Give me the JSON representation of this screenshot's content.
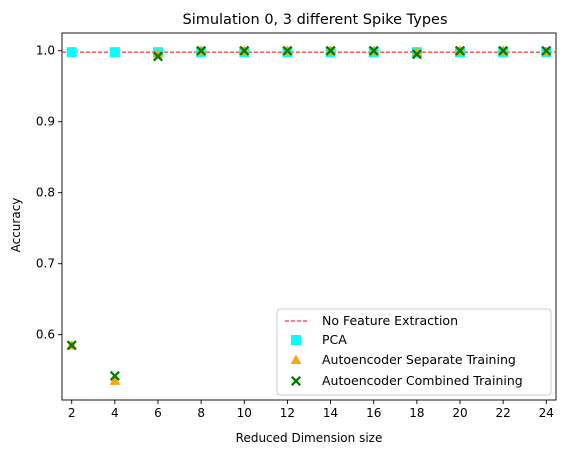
{
  "chart_data": {
    "type": "scatter",
    "title": "Simulation 0, 3 different Spike Types",
    "xlabel": "Reduced Dimension size",
    "ylabel": "Accuracy",
    "x": [
      2,
      4,
      6,
      8,
      10,
      12,
      14,
      16,
      18,
      20,
      22,
      24
    ],
    "xlim": [
      1.55,
      24.45
    ],
    "ylim": [
      0.508,
      1.025
    ],
    "x_ticks": [
      "2",
      "4",
      "6",
      "8",
      "10",
      "12",
      "14",
      "16",
      "18",
      "20",
      "22",
      "24"
    ],
    "y_ticks": [
      {
        "value": 0.6,
        "label": "0.6"
      },
      {
        "value": 0.7,
        "label": "0.7"
      },
      {
        "value": 0.8,
        "label": "0.8"
      },
      {
        "value": 0.9,
        "label": "0.9"
      },
      {
        "value": 1.0,
        "label": "1.0"
      }
    ],
    "grid": false,
    "legend_position": "lower-right",
    "reference_line": {
      "name": "No Feature Extraction",
      "value": 0.998,
      "color": "#ff0000",
      "style": "dashed"
    },
    "series": [
      {
        "name": "PCA",
        "marker": "square",
        "color": "#00ffff",
        "values": [
          0.998,
          0.998,
          0.998,
          0.998,
          0.998,
          0.998,
          0.998,
          0.998,
          0.998,
          0.998,
          0.998,
          0.998
        ]
      },
      {
        "name": "Autoencoder Separate Training",
        "marker": "triangle",
        "color": "#ffa500",
        "values": [
          0.585,
          0.535,
          0.996,
          1.0,
          1.0,
          1.0,
          1.0,
          1.0,
          0.998,
          1.0,
          1.0,
          0.998
        ]
      },
      {
        "name": "Autoencoder Combined Training",
        "marker": "x",
        "color": "#008000",
        "values": [
          0.585,
          0.542,
          0.992,
          1.0,
          1.0,
          1.0,
          1.0,
          1.0,
          0.995,
          1.0,
          1.0,
          1.0
        ]
      }
    ]
  }
}
